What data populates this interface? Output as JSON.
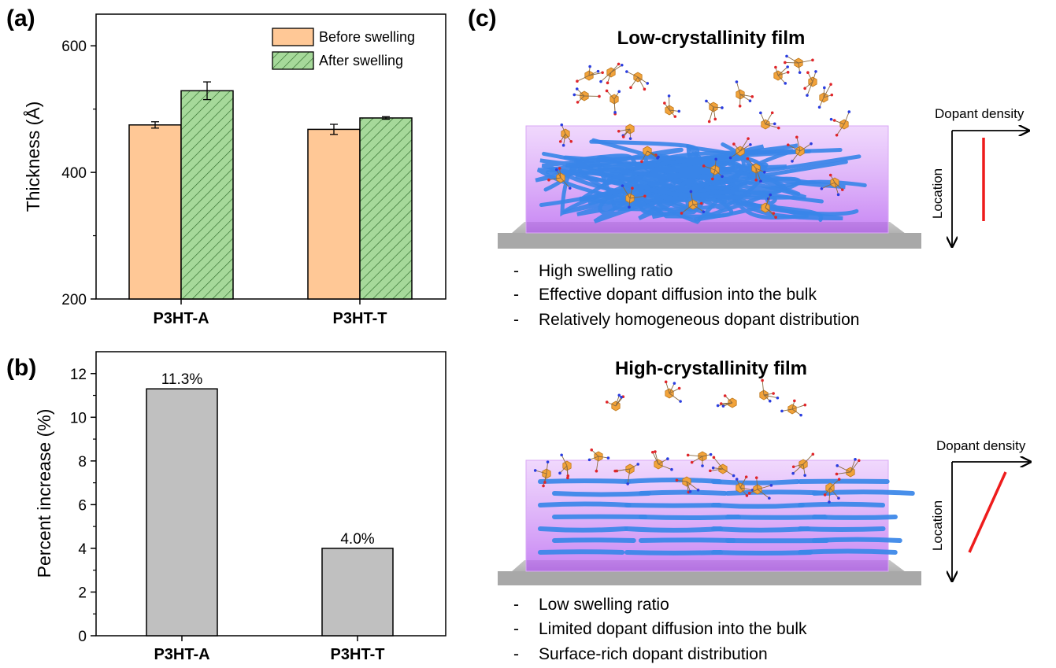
{
  "panels": {
    "a": "(a)",
    "b": "(b)",
    "c": "(c)"
  },
  "chart_data": [
    {
      "type": "bar",
      "panel": "(a)",
      "categories": [
        "P3HT-A",
        "P3HT-T"
      ],
      "ylabel": "Thickness (Å)",
      "xlabel": "",
      "ylim": [
        200,
        650
      ],
      "yticks": [
        200,
        400,
        600
      ],
      "legend_position": "top-right",
      "series": [
        {
          "name": "Before swelling",
          "values": [
            475,
            468
          ],
          "errors": [
            5,
            8
          ],
          "color": "#ffc896",
          "pattern": "none"
        },
        {
          "name": "After swelling",
          "values": [
            529,
            486
          ],
          "errors": [
            14,
            2
          ],
          "color": "#a6d99a",
          "pattern": "hatch"
        }
      ]
    },
    {
      "type": "bar",
      "panel": "(b)",
      "categories": [
        "P3HT-A",
        "P3HT-T"
      ],
      "values": [
        11.3,
        4.0
      ],
      "data_labels": [
        "11.3%",
        "4.0%"
      ],
      "ylabel": "Percent increase (%)",
      "xlabel": "",
      "ylim": [
        0,
        13
      ],
      "yticks": [
        0,
        2,
        4,
        6,
        8,
        10,
        12
      ],
      "color": "#c0c0c0"
    }
  ],
  "panel_c": {
    "low": {
      "title": "Low-crystallinity film",
      "bullets": [
        "High swelling ratio",
        "Effective dopant diffusion into the bulk",
        "Relatively homogeneous dopant distribution"
      ],
      "x_axis_label": "Dopant density",
      "y_axis_label": "Location",
      "profile": "vertical"
    },
    "high": {
      "title": "High-crystallinity film",
      "bullets": [
        "Low swelling ratio",
        "Limited dopant diffusion into the bulk",
        "Surface-rich dopant distribution"
      ],
      "x_axis_label": "Dopant density",
      "y_axis_label": "Location",
      "profile": "diagonal"
    },
    "bullet_marker": "-",
    "colors": {
      "polymer": "#3a86e8",
      "film": "#c77bf0",
      "substrate": "#b4b4b4",
      "dopant": "#f2a33a",
      "profile_line": "#ee1c1c"
    }
  }
}
